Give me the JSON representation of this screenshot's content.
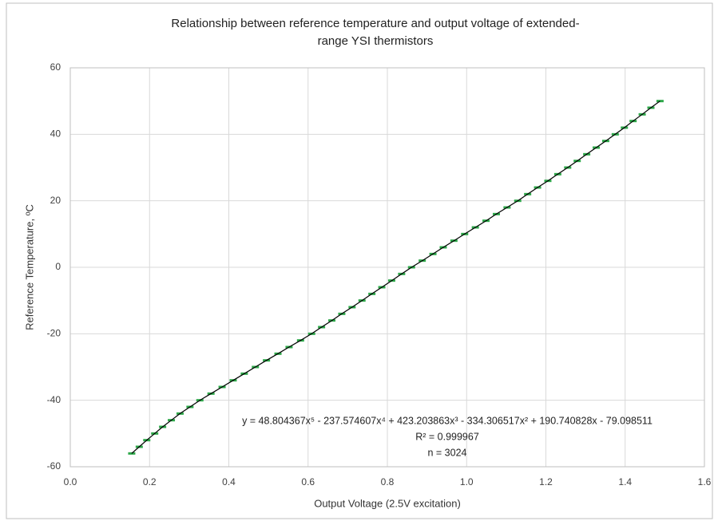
{
  "chart_data": {
    "type": "scatter",
    "title": [
      "Relationship between reference temperature and output voltage of extended-",
      "range YSI thermistors"
    ],
    "x_label": "Output Voltage (2.5V excitation)",
    "y_label": "Reference Temperature, ºC",
    "annotations": [
      "y = 48.804367x⁵ - 237.574607x⁴ + 423.203863x³ - 334.306517x² + 190.740828x - 79.098511",
      "R² = 0.999967",
      "n = 3024"
    ],
    "xlim": [
      0,
      1.6
    ],
    "ylim": [
      -60,
      60
    ],
    "xticks": [
      {
        "value": 0,
        "label": "0.0"
      },
      0.2,
      0.4,
      0.6,
      0.8,
      {
        "value": 1,
        "label": "1.0"
      },
      1.2,
      1.4,
      1.6
    ],
    "yticks": [
      -60,
      -40,
      -20,
      0,
      20,
      40,
      60
    ],
    "grid": true,
    "series": [
      {
        "color": "#2ea84a",
        "line_color": "#000000",
        "x": [
          0.155,
          0.174,
          0.193,
          0.213,
          0.233,
          0.255,
          0.277,
          0.302,
          0.327,
          0.355,
          0.383,
          0.411,
          0.439,
          0.467,
          0.495,
          0.524,
          0.552,
          0.581,
          0.609,
          0.634,
          0.66,
          0.685,
          0.711,
          0.736,
          0.761,
          0.786,
          0.811,
          0.836,
          0.861,
          0.888,
          0.915,
          0.941,
          0.968,
          0.995,
          1.022,
          1.049,
          1.075,
          1.102,
          1.129,
          1.154,
          1.179,
          1.205,
          1.23,
          1.255,
          1.279,
          1.303,
          1.327,
          1.351,
          1.375,
          1.398,
          1.42,
          1.443,
          1.465,
          1.488
        ],
        "values": [
          -56,
          -54,
          -52,
          -50,
          -48,
          -46,
          -44,
          -42,
          -40,
          -38,
          -36,
          -34,
          -32,
          -30,
          -28,
          -26,
          -24,
          -22,
          -20,
          -18,
          -16,
          -14,
          -12,
          -10,
          -8,
          -6,
          -4,
          -2,
          0,
          2,
          4,
          6,
          8,
          10,
          12,
          14,
          16,
          18,
          20,
          22,
          24,
          26,
          28,
          30,
          32,
          34,
          36,
          38,
          40,
          42,
          44,
          46,
          48,
          50
        ]
      }
    ]
  }
}
